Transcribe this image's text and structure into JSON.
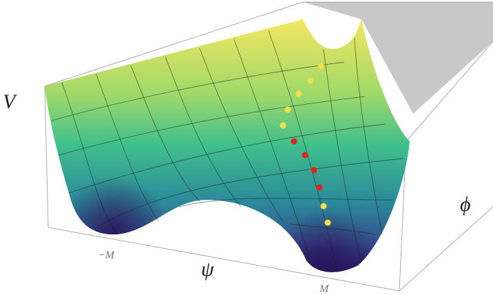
{
  "axes": {
    "z_label": "V",
    "x_label": "ψ",
    "y_label": "ϕ",
    "x_ticks": [
      "−M",
      "M"
    ]
  }
}
